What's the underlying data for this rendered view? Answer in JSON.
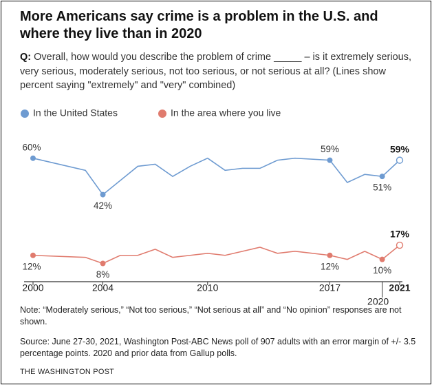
{
  "chart_data": {
    "type": "line",
    "title": "More Americans say crime is a problem in the U.S. and where they live than in 2020",
    "question_label": "Q:",
    "subtitle": "Overall, how would you describe the problem of crime _____ – is it extremely serious, very serious, moderately serious, not too serious, or not serious at all? (Lines show percent saying \"extremely\" and \"very\" combined)",
    "series": [
      {
        "name": "In the United States",
        "color": "#6e9bd1",
        "x": [
          2000,
          2003,
          2004,
          2006,
          2007,
          2008,
          2009,
          2010,
          2011,
          2012,
          2013,
          2014,
          2015,
          2017,
          2018,
          2019,
          2020,
          2021
        ],
        "values": [
          60,
          54,
          42,
          56,
          57,
          51,
          56,
          60,
          54,
          55,
          55,
          59,
          60,
          59,
          48,
          52,
          51,
          59
        ],
        "value_labels": [
          "60%",
          null,
          "42%",
          null,
          null,
          null,
          null,
          null,
          null,
          null,
          null,
          null,
          null,
          "59%",
          null,
          null,
          "51%",
          "59%"
        ]
      },
      {
        "name": "In the area where you live",
        "color": "#e07b6e",
        "x": [
          2000,
          2003,
          2004,
          2005,
          2006,
          2007,
          2008,
          2009,
          2010,
          2011,
          2012,
          2013,
          2014,
          2015,
          2017,
          2018,
          2019,
          2020,
          2021
        ],
        "values": [
          12,
          11,
          8,
          12,
          12,
          15,
          11,
          12,
          13,
          12,
          14,
          16,
          13,
          14,
          12,
          10,
          14,
          10,
          17
        ],
        "value_labels": [
          "12%",
          null,
          "8%",
          null,
          null,
          null,
          null,
          null,
          null,
          null,
          null,
          null,
          null,
          null,
          "12%",
          null,
          null,
          "10%",
          "17%"
        ]
      }
    ],
    "xlim": [
      2000,
      2021
    ],
    "xticks": [
      2000,
      2004,
      2010,
      2017,
      2020,
      2021
    ],
    "ylim": [
      0,
      65
    ],
    "note": "Note: “Moderately serious,” “Not too serious,” “Not serious at all” and “No opinion” responses are not shown.",
    "source": "Source: June 27-30, 2021, Washington Post-ABC News poll of 907 adults with an error margin of +/- 3.5 percentage points. 2020 and prior data from Gallup polls.",
    "credit": "THE WASHINGTON POST"
  }
}
